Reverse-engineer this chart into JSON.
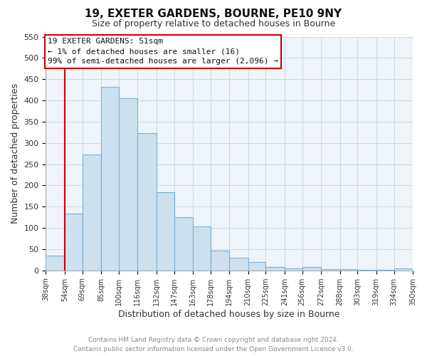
{
  "title": "19, EXETER GARDENS, BOURNE, PE10 9NY",
  "subtitle": "Size of property relative to detached houses in Bourne",
  "xlabel": "Distribution of detached houses by size in Bourne",
  "ylabel": "Number of detached properties",
  "bar_left_edges": [
    38,
    54,
    69,
    85,
    100,
    116,
    132,
    147,
    163,
    178,
    194,
    210,
    225,
    241,
    256,
    272,
    288,
    303,
    319,
    334
  ],
  "bar_heights": [
    35,
    133,
    273,
    432,
    405,
    323,
    184,
    125,
    104,
    46,
    30,
    19,
    8,
    5,
    8,
    3,
    3,
    2,
    1,
    5
  ],
  "bar_widths": [
    16,
    15,
    16,
    15,
    16,
    16,
    15,
    16,
    15,
    16,
    16,
    15,
    16,
    15,
    16,
    16,
    15,
    16,
    15,
    16
  ],
  "tick_labels": [
    "38sqm",
    "54sqm",
    "69sqm",
    "85sqm",
    "100sqm",
    "116sqm",
    "132sqm",
    "147sqm",
    "163sqm",
    "178sqm",
    "194sqm",
    "210sqm",
    "225sqm",
    "241sqm",
    "256sqm",
    "272sqm",
    "288sqm",
    "303sqm",
    "319sqm",
    "334sqm",
    "350sqm"
  ],
  "tick_positions": [
    38,
    54,
    69,
    85,
    100,
    116,
    132,
    147,
    163,
    178,
    194,
    210,
    225,
    241,
    256,
    272,
    288,
    303,
    319,
    334,
    350
  ],
  "bar_color": "#cce0f0",
  "bar_edge_color": "#7ab0d4",
  "highlight_vline_x": 54,
  "highlight_vline_color": "#cc0000",
  "ylim": [
    0,
    550
  ],
  "yticks": [
    0,
    50,
    100,
    150,
    200,
    250,
    300,
    350,
    400,
    450,
    500,
    550
  ],
  "annotation_title": "19 EXETER GARDENS: 51sqm",
  "annotation_line1": "← 1% of detached houses are smaller (16)",
  "annotation_line2": "99% of semi-detached houses are larger (2,096) →",
  "footer_line1": "Contains HM Land Registry data © Crown copyright and database right 2024.",
  "footer_line2": "Contains public sector information licensed under the Open Government Licence v3.0.",
  "bg_color": "#ffffff",
  "plot_bg_color": "#eef4fa",
  "grid_color": "#c8d8e8"
}
